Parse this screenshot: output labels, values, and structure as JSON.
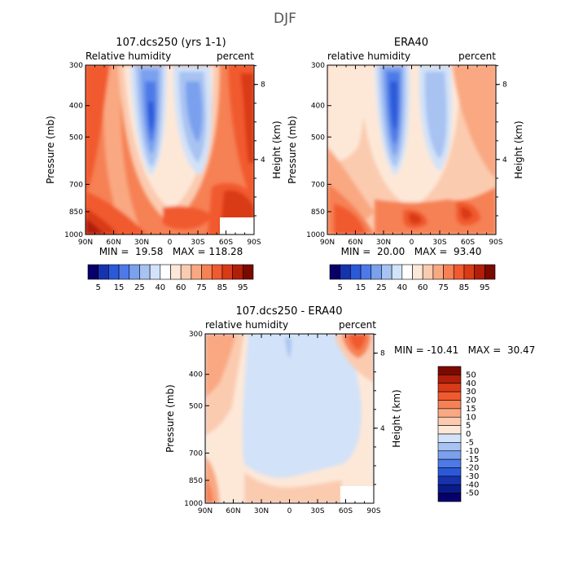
{
  "figure_title": "DJF",
  "colors": {
    "negative": [
      "#08006a",
      "#1632ad",
      "#2a5ad8",
      "#4d7ae8",
      "#7aa0ee",
      "#a8c2f2",
      "#d2e2f8"
    ],
    "positive": [
      "#fde8d8",
      "#fbcbb0",
      "#f9a882",
      "#f68155",
      "#f15a2e",
      "#d93a18",
      "#b11e0a",
      "#7a0a00"
    ]
  },
  "chart_data": [
    {
      "type": "heatmap",
      "panel": "model",
      "title": "107.dcs250 (yrs 1-1)",
      "left_label": "Relative humidity",
      "right_label": "percent",
      "xlabel": "",
      "ylabel": "Pressure (mb)",
      "y2label": "Height (km)",
      "x_ticks": [
        "90N",
        "60N",
        "30N",
        "0",
        "30S",
        "60S",
        "90S"
      ],
      "y_ticks": [
        "300",
        "400",
        "500",
        "700",
        "850",
        "1000"
      ],
      "y2_ticks": [
        "8",
        "4"
      ],
      "stats": "MIN =  19.58   MAX = 118.28",
      "colorbar_ticks": [
        "5",
        "15",
        "25",
        "40",
        "60",
        "75",
        "85",
        "95"
      ]
    },
    {
      "type": "heatmap",
      "panel": "obs",
      "title": "ERA40",
      "left_label": "relative humidity",
      "right_label": "percent",
      "xlabel": "",
      "ylabel": "Pressure (mb)",
      "y2label": "Height (km)",
      "x_ticks": [
        "90N",
        "60N",
        "30N",
        "0",
        "30S",
        "60S",
        "90S"
      ],
      "y_ticks": [
        "300",
        "400",
        "500",
        "700",
        "850",
        "1000"
      ],
      "y2_ticks": [
        "8",
        "4"
      ],
      "stats": "MIN =  20.00   MAX =  93.40",
      "colorbar_ticks": [
        "5",
        "15",
        "25",
        "40",
        "60",
        "75",
        "85",
        "95"
      ]
    },
    {
      "type": "heatmap",
      "panel": "diff",
      "title": "107.dcs250 - ERA40",
      "left_label": "relative humidity",
      "right_label": "percent",
      "xlabel": "",
      "ylabel": "Pressure (mb)",
      "y2label": "Height (km)",
      "x_ticks": [
        "90N",
        "60N",
        "30N",
        "0",
        "30S",
        "60S",
        "90S"
      ],
      "y_ticks": [
        "300",
        "400",
        "500",
        "700",
        "850",
        "1000"
      ],
      "y2_ticks": [
        "8",
        "4"
      ],
      "stats": "MIN = -10.41   MAX =  30.47",
      "colorbar_ticks": [
        "50",
        "40",
        "30",
        "20",
        "15",
        "10",
        "5",
        "0",
        "-5",
        "-10",
        "-15",
        "-20",
        "-30",
        "-40",
        "-50"
      ]
    }
  ]
}
